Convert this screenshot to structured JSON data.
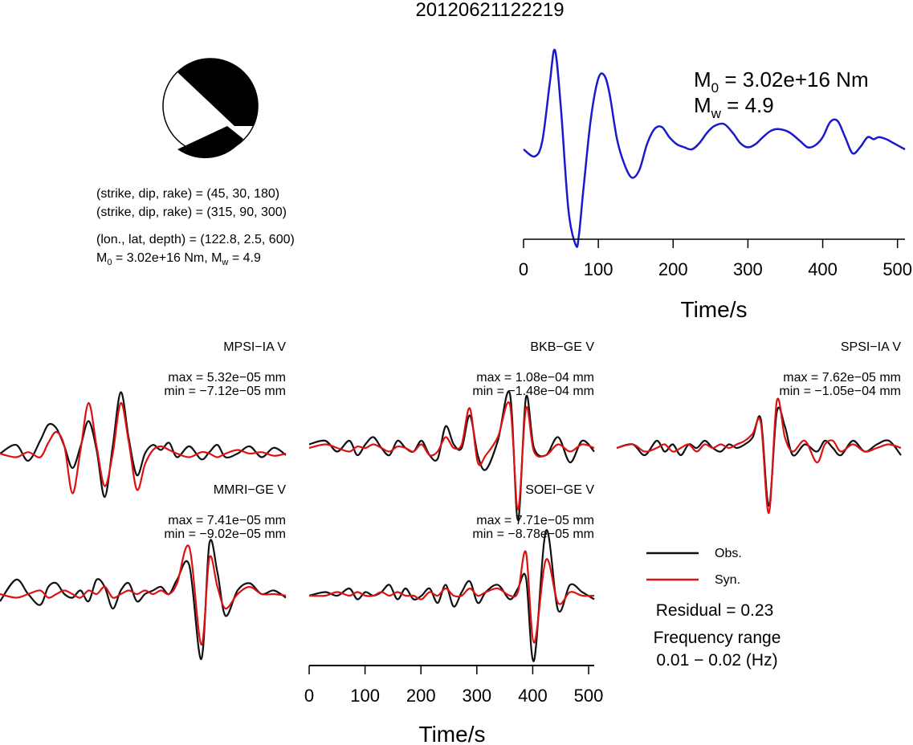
{
  "title": "20120621122219",
  "info": {
    "line1": "(strike, dip, rake) = (45, 30, 180)",
    "line2": "(strike, dip, rake) = (315, 90, 300)",
    "line3": "(lon., lat, depth) = (122.8, 2.5, 600)",
    "m0_label": "M",
    "m0_sub": "0",
    "m0_value": " = 3.02e+16 Nm, M",
    "mw_sub": "w",
    "mw_value": " = 4.9"
  },
  "moment": {
    "m0_main": "M",
    "m0_sub": "0",
    "m0_value": " = 3.02e+16 Nm",
    "mw_main": "M",
    "mw_sub": "w",
    "mw_value": " = 4.9"
  },
  "colors": {
    "stf": "#1a1acc",
    "obs": "#111111",
    "syn": "#dd1111",
    "beachball_fill": "#000000"
  },
  "legend": {
    "obs_label": "Obs.",
    "syn_label": "Syn.",
    "residual": "Residual = 0.23",
    "freq_title": "Frequency range",
    "freq_value": "0.01 − 0.02 (Hz)"
  },
  "chart_data": [
    {
      "type": "line",
      "title": "",
      "xlabel": "Time/s",
      "ylabel": "",
      "xlim": [
        0,
        510
      ],
      "xticks": [
        "0",
        "100",
        "200",
        "300",
        "400",
        "500"
      ],
      "series": [
        {
          "x": [
            0,
            15,
            25,
            35,
            42,
            50,
            60,
            70,
            74,
            80,
            90,
            100,
            108,
            115,
            125,
            135,
            145,
            155,
            165,
            175,
            185,
            195,
            205,
            215,
            225,
            235,
            245,
            255,
            268,
            280,
            290,
            300,
            310,
            320,
            330,
            340,
            355,
            370,
            380,
            390,
            400,
            410,
            420,
            430,
            440,
            450,
            460,
            468,
            475,
            485,
            495,
            505,
            510
          ],
          "y": [
            0.0,
            -0.07,
            0.08,
            0.65,
            0.98,
            0.4,
            -0.6,
            -0.95,
            -0.85,
            -0.4,
            0.3,
            0.7,
            0.73,
            0.55,
            0.1,
            -0.15,
            -0.28,
            -0.2,
            0.05,
            0.2,
            0.22,
            0.12,
            0.05,
            0.02,
            0.0,
            0.06,
            0.16,
            0.23,
            0.25,
            0.16,
            0.06,
            0.02,
            0.05,
            0.12,
            0.18,
            0.2,
            0.17,
            0.08,
            0.02,
            0.04,
            0.12,
            0.27,
            0.28,
            0.12,
            -0.04,
            0.02,
            0.12,
            0.1,
            0.12,
            0.1,
            0.06,
            0.02,
            0.0
          ]
        }
      ]
    },
    {
      "type": "line",
      "title": "MPSI−IA V",
      "max_label": "max = 5.32e−05 mm",
      "min_label": "min = −7.12e−05 mm",
      "x": [
        0,
        20,
        35,
        50,
        60,
        70,
        80,
        90,
        100,
        110,
        120,
        130,
        140,
        150,
        160,
        170,
        180,
        190,
        200,
        210,
        220,
        235,
        250,
        260,
        270,
        280,
        295,
        310,
        325,
        340,
        355
      ],
      "series": [
        {
          "name": "Obs.",
          "values": [
            0.0,
            0.12,
            -0.1,
            0.18,
            0.4,
            0.35,
            0.1,
            -0.2,
            0.1,
            0.45,
            0.05,
            -0.6,
            0.1,
            0.85,
            0.2,
            -0.3,
            0.0,
            0.12,
            0.05,
            0.15,
            -0.05,
            0.1,
            -0.08,
            0.02,
            0.12,
            -0.05,
            0.0,
            0.1,
            -0.05,
            0.08,
            -0.02
          ]
        },
        {
          "name": "Syn.",
          "values": [
            0.0,
            -0.05,
            0.02,
            -0.05,
            0.15,
            0.3,
            0.1,
            -0.55,
            0.05,
            0.7,
            0.1,
            -0.45,
            0.0,
            0.7,
            0.15,
            -0.5,
            -0.15,
            0.05,
            0.1,
            0.05,
            0.0,
            -0.05,
            0.02,
            0.0,
            -0.05,
            0.0,
            0.05,
            0.0,
            0.02,
            -0.03,
            0.0
          ]
        }
      ]
    },
    {
      "type": "line",
      "title": "BKB−GE V",
      "max_label": "max = 1.08e−04 mm",
      "min_label": "min = −1.48e−04 mm",
      "x": [
        0,
        20,
        35,
        50,
        60,
        70,
        80,
        90,
        100,
        110,
        120,
        130,
        140,
        150,
        160,
        170,
        180,
        190,
        200,
        210,
        220,
        235,
        250,
        260,
        270,
        280,
        295,
        310,
        325,
        340,
        355
      ],
      "series": [
        {
          "name": "Obs.",
          "values": [
            0.05,
            0.1,
            -0.05,
            0.1,
            -0.1,
            0.05,
            0.15,
            0.0,
            -0.1,
            0.1,
            0.0,
            -0.05,
            0.1,
            -0.1,
            -0.15,
            0.3,
            0.05,
            0.0,
            0.45,
            -0.1,
            -0.3,
            0.1,
            0.75,
            -1.0,
            0.7,
            0.0,
            -0.1,
            0.15,
            -0.2,
            0.1,
            -0.05
          ]
        },
        {
          "name": "Syn.",
          "values": [
            0.0,
            0.05,
            0.0,
            -0.05,
            0.02,
            0.0,
            0.05,
            0.0,
            -0.05,
            0.02,
            0.0,
            -0.05,
            0.05,
            -0.1,
            -0.05,
            0.15,
            0.0,
            0.05,
            0.55,
            -0.2,
            -0.1,
            0.15,
            0.6,
            -0.85,
            0.55,
            -0.05,
            -0.1,
            0.05,
            -0.05,
            0.05,
            0.0
          ]
        }
      ]
    },
    {
      "type": "line",
      "title": "SPSI−IA V",
      "max_label": "max = 7.62e−05 mm",
      "min_label": "min = −1.05e−04 mm",
      "x": [
        0,
        20,
        35,
        50,
        60,
        70,
        80,
        90,
        100,
        110,
        120,
        130,
        140,
        150,
        160,
        170,
        180,
        190,
        200,
        210,
        220,
        235,
        250,
        260,
        270,
        280,
        295,
        310,
        325,
        340,
        355
      ],
      "series": [
        {
          "name": "Obs.",
          "values": [
            0.0,
            0.05,
            -0.1,
            0.1,
            -0.05,
            0.05,
            -0.1,
            0.05,
            0.0,
            0.1,
            0.0,
            -0.05,
            0.05,
            0.0,
            0.05,
            0.15,
            0.4,
            -0.8,
            0.5,
            0.3,
            -0.1,
            0.05,
            -0.05,
            0.1,
            0.0,
            -0.1,
            0.1,
            -0.05,
            0.05,
            0.1,
            -0.1
          ]
        },
        {
          "name": "Syn.",
          "values": [
            0.0,
            0.05,
            -0.05,
            0.0,
            0.05,
            -0.05,
            0.0,
            0.05,
            -0.05,
            0.05,
            0.0,
            0.05,
            0.0,
            0.05,
            0.1,
            0.2,
            0.35,
            -0.9,
            0.65,
            0.15,
            -0.05,
            0.1,
            -0.2,
            0.05,
            0.1,
            -0.05,
            0.05,
            -0.05,
            0.0,
            0.05,
            0.0
          ]
        }
      ]
    },
    {
      "type": "line",
      "title": "MMRI−GE V",
      "max_label": "max = 7.41e−05 mm",
      "min_label": "min = −9.02e−05 mm",
      "x": [
        0,
        20,
        35,
        50,
        60,
        70,
        80,
        90,
        100,
        110,
        120,
        130,
        140,
        150,
        160,
        170,
        180,
        190,
        200,
        210,
        220,
        235,
        250,
        260,
        270,
        280,
        295,
        310,
        325,
        340,
        355
      ],
      "series": [
        {
          "name": "Obs.",
          "values": [
            -0.1,
            0.2,
            0.0,
            -0.15,
            0.1,
            0.15,
            0.0,
            -0.05,
            0.05,
            -0.1,
            0.2,
            0.1,
            -0.2,
            0.05,
            0.15,
            -0.1,
            0.0,
            0.05,
            0.1,
            0.0,
            0.2,
            0.4,
            -0.9,
            0.7,
            0.3,
            -0.3,
            0.05,
            0.15,
            0.0,
            0.05,
            -0.05
          ]
        },
        {
          "name": "Syn.",
          "values": [
            0.0,
            -0.05,
            0.0,
            0.05,
            -0.05,
            0.0,
            0.05,
            0.0,
            -0.05,
            0.05,
            0.0,
            0.1,
            -0.05,
            0.0,
            0.05,
            0.0,
            0.05,
            0.0,
            0.05,
            0.0,
            0.15,
            0.65,
            -0.7,
            0.5,
            0.1,
            -0.2,
            0.0,
            0.1,
            0.0,
            0.0,
            -0.02
          ]
        }
      ]
    },
    {
      "type": "line",
      "title": "SOEI−GE V",
      "max_label": "max = 7.71e−05 mm",
      "min_label": "min = −8.78e−05 mm",
      "xlabel": "Time/s",
      "xlim": [
        0,
        510
      ],
      "xticks": [
        "0",
        "100",
        "200",
        "300",
        "400",
        "500"
      ],
      "x": [
        0,
        20,
        35,
        50,
        60,
        70,
        80,
        90,
        100,
        110,
        120,
        130,
        140,
        150,
        160,
        170,
        180,
        190,
        200,
        210,
        220,
        235,
        250,
        260,
        270,
        280,
        295,
        310,
        325,
        340,
        355
      ],
      "series": [
        {
          "name": "Obs.",
          "values": [
            0.0,
            0.05,
            0.0,
            0.1,
            -0.05,
            0.05,
            0.0,
            0.05,
            0.15,
            -0.05,
            0.1,
            -0.05,
            0.0,
            0.1,
            -0.1,
            0.15,
            -0.15,
            0.05,
            0.2,
            -0.1,
            0.05,
            0.15,
            -0.05,
            0.1,
            0.25,
            -0.9,
            0.9,
            -0.2,
            0.15,
            0.05,
            -0.05
          ]
        },
        {
          "name": "Syn.",
          "values": [
            0.0,
            0.0,
            0.05,
            0.0,
            0.05,
            0.0,
            0.0,
            0.05,
            0.0,
            0.05,
            0.0,
            0.0,
            -0.05,
            0.05,
            0.0,
            0.1,
            0.0,
            0.0,
            0.1,
            0.0,
            0.05,
            0.1,
            0.0,
            0.05,
            0.6,
            -0.65,
            0.5,
            -0.1,
            0.05,
            0.0,
            0.0
          ]
        }
      ]
    }
  ]
}
